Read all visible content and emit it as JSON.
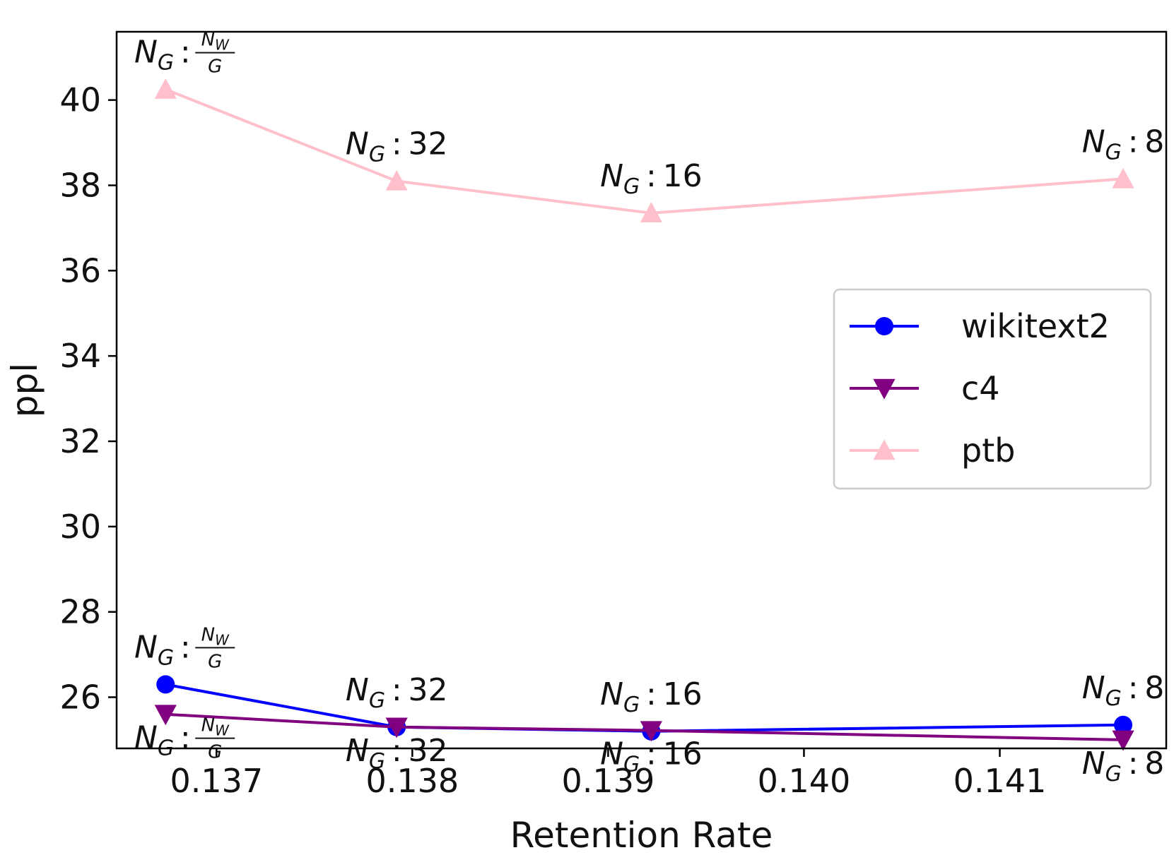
{
  "chart_data": {
    "type": "line",
    "title": "",
    "xlabel": "Retention Rate",
    "ylabel": "ppl",
    "xlim": [
      0.13649,
      0.14185
    ],
    "ylim": [
      24.8,
      41.6
    ],
    "x_ticks": [
      {
        "value": 0.137,
        "label": "0.137"
      },
      {
        "value": 0.138,
        "label": "0.138"
      },
      {
        "value": 0.139,
        "label": "0.139"
      },
      {
        "value": 0.14,
        "label": "0.140"
      },
      {
        "value": 0.141,
        "label": "0.141"
      }
    ],
    "y_ticks": [
      {
        "value": 26,
        "label": "26"
      },
      {
        "value": 28,
        "label": "28"
      },
      {
        "value": 30,
        "label": "30"
      },
      {
        "value": 32,
        "label": "32"
      },
      {
        "value": 34,
        "label": "34"
      },
      {
        "value": 36,
        "label": "36"
      },
      {
        "value": 38,
        "label": "38"
      },
      {
        "value": 40,
        "label": "40"
      }
    ],
    "x": [
      0.13674,
      0.13792,
      0.13922,
      0.14163
    ],
    "grid": false,
    "legend_position": "center-right",
    "series": [
      {
        "name": "wikitext2",
        "color": "#0000ff",
        "marker": "circle",
        "values": [
          26.3,
          25.3,
          25.2,
          25.35
        ]
      },
      {
        "name": "c4",
        "color": "#800080",
        "marker": "triangle-down",
        "values": [
          25.6,
          25.3,
          25.22,
          25.0
        ]
      },
      {
        "name": "ptb",
        "color": "#ffc0cb",
        "marker": "triangle-up",
        "values": [
          40.25,
          38.1,
          37.35,
          38.15
        ]
      }
    ],
    "annotations": [
      {
        "series": "ptb",
        "point": 0,
        "position": "above",
        "base": "N",
        "sub": "G",
        "separator": ":",
        "frac": {
          "num_base": "N",
          "num_sub": "W",
          "den": "G"
        }
      },
      {
        "series": "ptb",
        "point": 1,
        "position": "above",
        "base": "N",
        "sub": "G",
        "separator": ":",
        "value": "32"
      },
      {
        "series": "ptb",
        "point": 2,
        "position": "above",
        "base": "N",
        "sub": "G",
        "separator": ":",
        "value": "16"
      },
      {
        "series": "ptb",
        "point": 3,
        "position": "above",
        "base": "N",
        "sub": "G",
        "separator": ":",
        "value": "8"
      },
      {
        "series": "wikitext2",
        "point": 0,
        "position": "above",
        "base": "N",
        "sub": "G",
        "separator": ":",
        "frac": {
          "num_base": "N",
          "num_sub": "W",
          "den": "G"
        }
      },
      {
        "series": "wikitext2",
        "point": 1,
        "position": "above",
        "base": "N",
        "sub": "G",
        "separator": ":",
        "value": "32"
      },
      {
        "series": "wikitext2",
        "point": 2,
        "position": "above",
        "base": "N",
        "sub": "G",
        "separator": ":",
        "value": "16"
      },
      {
        "series": "wikitext2",
        "point": 3,
        "position": "above",
        "base": "N",
        "sub": "G",
        "separator": ":",
        "value": "8"
      },
      {
        "series": "c4",
        "point": 0,
        "position": "below",
        "base": "N",
        "sub": "G",
        "separator": ":",
        "frac": {
          "num_base": "N",
          "num_sub": "W",
          "den": "G"
        }
      },
      {
        "series": "c4",
        "point": 1,
        "position": "below",
        "base": "N",
        "sub": "G",
        "separator": ":",
        "value": "32"
      },
      {
        "series": "c4",
        "point": 2,
        "position": "below",
        "base": "N",
        "sub": "G",
        "separator": ":",
        "value": "16"
      },
      {
        "series": "c4",
        "point": 3,
        "position": "below",
        "base": "N",
        "sub": "G",
        "separator": ":",
        "value": "8"
      }
    ]
  }
}
